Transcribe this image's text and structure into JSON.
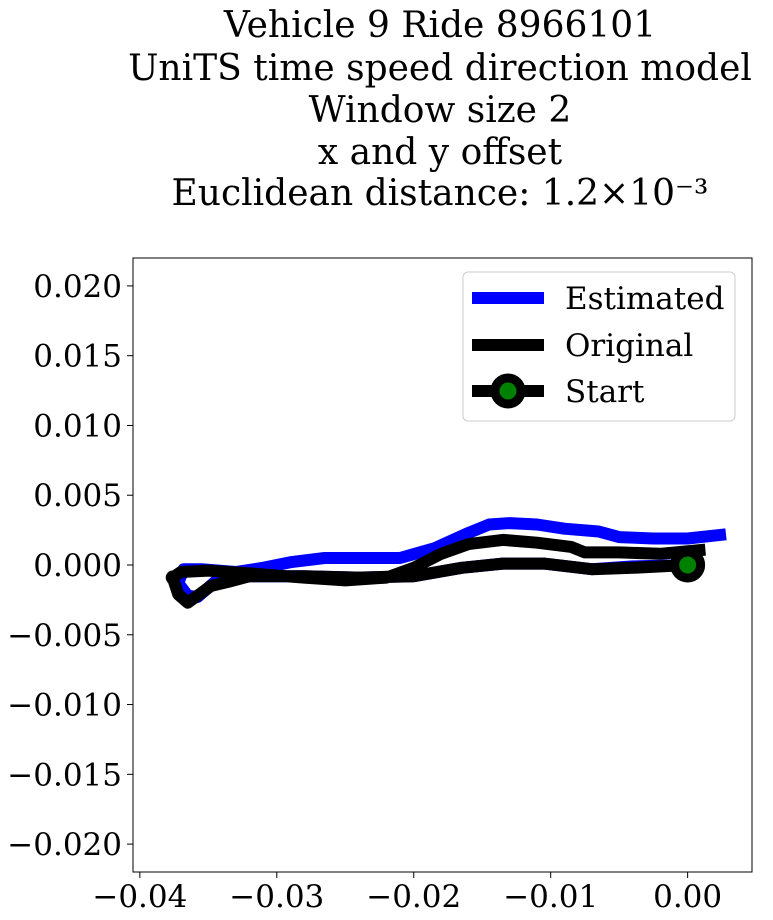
{
  "chart_data": {
    "type": "line",
    "title_lines": [
      "Vehicle 9 Ride 8966101",
      "UniTS time speed direction model",
      "Window size 2",
      "x and y offset",
      "Euclidean distance: 1.2×10⁻³"
    ],
    "xlabel": "",
    "ylabel": "",
    "xlim": [
      -0.0405,
      0.0047
    ],
    "ylim": [
      -0.022,
      0.022
    ],
    "x_ticks": [
      -0.04,
      -0.03,
      -0.02,
      -0.01,
      0.0
    ],
    "x_tick_labels": [
      "−0.04",
      "−0.03",
      "−0.02",
      "−0.01",
      "0.00"
    ],
    "y_ticks": [
      0.02,
      0.015,
      0.01,
      0.005,
      0.0,
      -0.005,
      -0.01,
      -0.015,
      -0.02
    ],
    "y_tick_labels": [
      "0.020",
      "0.015",
      "0.010",
      "0.005",
      "0.000",
      "−0.005",
      "−0.010",
      "−0.015",
      "−0.020"
    ],
    "grid": false,
    "legend_position": "top-right",
    "legend": [
      "Estimated",
      "Original",
      "Start"
    ],
    "series": [
      {
        "name": "Estimated",
        "color": "#0000ff",
        "points": [
          [
            0.0,
            0.0
          ],
          [
            -0.004,
            -0.0001
          ],
          [
            -0.007,
            -0.0003
          ],
          [
            -0.0105,
            0.0001
          ],
          [
            -0.0135,
            0.0001
          ],
          [
            -0.0165,
            -0.0002
          ],
          [
            -0.02,
            -0.0008
          ],
          [
            -0.024,
            -0.0009
          ],
          [
            -0.028,
            -0.0008
          ],
          [
            -0.032,
            -0.0008
          ],
          [
            -0.0345,
            -0.0012
          ],
          [
            -0.0358,
            -0.0023
          ],
          [
            -0.0365,
            -0.0022
          ],
          [
            -0.0372,
            -0.0013
          ],
          [
            -0.0368,
            -0.0003
          ],
          [
            -0.0355,
            -0.0003
          ],
          [
            -0.033,
            -0.0005
          ],
          [
            -0.031,
            -0.0002
          ],
          [
            -0.029,
            0.0002
          ],
          [
            -0.0265,
            0.0005
          ],
          [
            -0.024,
            0.0005
          ],
          [
            -0.021,
            0.0005
          ],
          [
            -0.0185,
            0.0012
          ],
          [
            -0.016,
            0.0023
          ],
          [
            -0.0145,
            0.0029
          ],
          [
            -0.013,
            0.003
          ],
          [
            -0.011,
            0.0029
          ],
          [
            -0.009,
            0.0026
          ],
          [
            -0.0065,
            0.0024
          ],
          [
            -0.005,
            0.002
          ],
          [
            -0.0025,
            0.0019
          ],
          [
            0.0,
            0.0019
          ],
          [
            0.0028,
            0.0022
          ]
        ]
      },
      {
        "name": "Original",
        "color": "#000000",
        "points": [
          [
            0.0,
            0.0
          ],
          [
            -0.004,
            -0.0002
          ],
          [
            -0.007,
            -0.0003
          ],
          [
            -0.0105,
            0.0001
          ],
          [
            -0.0135,
            0.0001
          ],
          [
            -0.0165,
            -0.0002
          ],
          [
            -0.02,
            -0.0008
          ],
          [
            -0.024,
            -0.0009
          ],
          [
            -0.028,
            -0.0008
          ],
          [
            -0.032,
            -0.0008
          ],
          [
            -0.0335,
            -0.0012
          ],
          [
            -0.0348,
            -0.0015
          ],
          [
            -0.0358,
            -0.0022
          ],
          [
            -0.0365,
            -0.0027
          ],
          [
            -0.0372,
            -0.0021
          ],
          [
            -0.0376,
            -0.0009
          ],
          [
            -0.037,
            -0.0005
          ],
          [
            -0.035,
            -0.0004
          ],
          [
            -0.032,
            -0.0006
          ],
          [
            -0.028,
            -0.0009
          ],
          [
            -0.025,
            -0.0011
          ],
          [
            -0.022,
            -0.0009
          ],
          [
            -0.02,
            -0.0002
          ],
          [
            -0.018,
            0.0008
          ],
          [
            -0.016,
            0.0015
          ],
          [
            -0.0135,
            0.0018
          ],
          [
            -0.011,
            0.0016
          ],
          [
            -0.0085,
            0.0013
          ],
          [
            -0.0075,
            0.0009
          ],
          [
            -0.005,
            0.0009
          ],
          [
            -0.002,
            0.0008
          ],
          [
            0.0013,
            0.0011
          ]
        ]
      }
    ],
    "start_point": {
      "x": 0.0,
      "y": 0.0,
      "marker_fill": "#008000",
      "marker_edge": "#000000"
    }
  }
}
